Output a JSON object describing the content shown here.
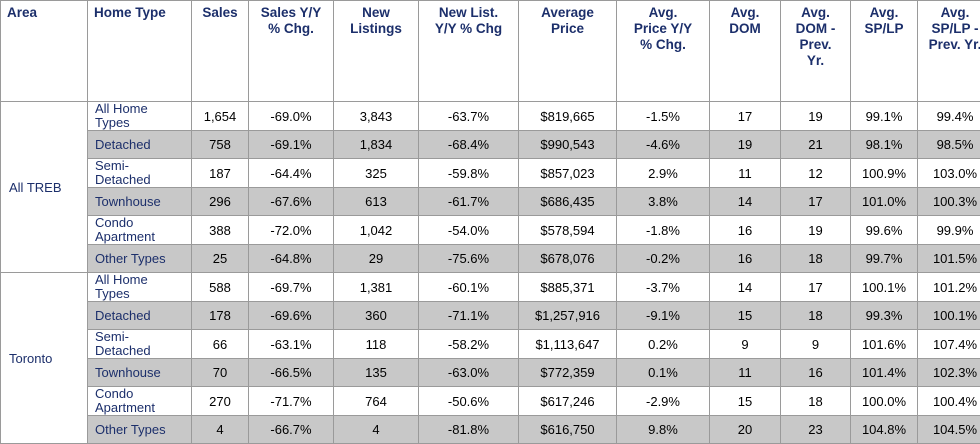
{
  "headers": {
    "area": "Area",
    "home_type": "Home Type",
    "sales": "Sales",
    "sales_yy": [
      "Sales Y/Y",
      "% Chg."
    ],
    "new_listings": [
      "New",
      "Listings"
    ],
    "new_list_yy": [
      "New List.",
      "Y/Y % Chg"
    ],
    "avg_price": [
      "Average",
      "Price"
    ],
    "avg_price_yy": [
      "Avg.",
      "Price Y/Y",
      "% Chg."
    ],
    "avg_dom": [
      "Avg.",
      "DOM"
    ],
    "avg_dom_prev": [
      "Avg.",
      "DOM -",
      "Prev.",
      "Yr."
    ],
    "avg_splp": [
      "Avg.",
      "SP/LP"
    ],
    "avg_splp_prev": [
      "Avg.",
      "SP/LP -",
      "Prev. Yr."
    ]
  },
  "groups": [
    {
      "area": "All TREB",
      "rows": [
        {
          "type": [
            "All Home",
            "Types"
          ],
          "sales": "1,654",
          "sales_yy": "-69.0%",
          "new_listings": "3,843",
          "new_list_yy": "-63.7%",
          "avg_price": "$819,665",
          "avg_price_yy": "-1.5%",
          "dom": "17",
          "dom_prev": "19",
          "splp": "99.1%",
          "splp_prev": "99.4%"
        },
        {
          "type": [
            "Detached"
          ],
          "sales": "758",
          "sales_yy": "-69.1%",
          "new_listings": "1,834",
          "new_list_yy": "-68.4%",
          "avg_price": "$990,543",
          "avg_price_yy": "-4.6%",
          "dom": "19",
          "dom_prev": "21",
          "splp": "98.1%",
          "splp_prev": "98.5%"
        },
        {
          "type": [
            "Semi-",
            "Detached"
          ],
          "sales": "187",
          "sales_yy": "-64.4%",
          "new_listings": "325",
          "new_list_yy": "-59.8%",
          "avg_price": "$857,023",
          "avg_price_yy": "2.9%",
          "dom": "11",
          "dom_prev": "12",
          "splp": "100.9%",
          "splp_prev": "103.0%"
        },
        {
          "type": [
            "Townhouse"
          ],
          "sales": "296",
          "sales_yy": "-67.6%",
          "new_listings": "613",
          "new_list_yy": "-61.7%",
          "avg_price": "$686,435",
          "avg_price_yy": "3.8%",
          "dom": "14",
          "dom_prev": "17",
          "splp": "101.0%",
          "splp_prev": "100.3%"
        },
        {
          "type": [
            "Condo",
            "Apartment"
          ],
          "sales": "388",
          "sales_yy": "-72.0%",
          "new_listings": "1,042",
          "new_list_yy": "-54.0%",
          "avg_price": "$578,594",
          "avg_price_yy": "-1.8%",
          "dom": "16",
          "dom_prev": "19",
          "splp": "99.6%",
          "splp_prev": "99.9%"
        },
        {
          "type": [
            "Other Types"
          ],
          "sales": "25",
          "sales_yy": "-64.8%",
          "new_listings": "29",
          "new_list_yy": "-75.6%",
          "avg_price": "$678,076",
          "avg_price_yy": "-0.2%",
          "dom": "16",
          "dom_prev": "18",
          "splp": "99.7%",
          "splp_prev": "101.5%"
        }
      ]
    },
    {
      "area": "Toronto",
      "rows": [
        {
          "type": [
            "All Home",
            "Types"
          ],
          "sales": "588",
          "sales_yy": "-69.7%",
          "new_listings": "1,381",
          "new_list_yy": "-60.1%",
          "avg_price": "$885,371",
          "avg_price_yy": "-3.7%",
          "dom": "14",
          "dom_prev": "17",
          "splp": "100.1%",
          "splp_prev": "101.2%"
        },
        {
          "type": [
            "Detached"
          ],
          "sales": "178",
          "sales_yy": "-69.6%",
          "new_listings": "360",
          "new_list_yy": "-71.1%",
          "avg_price": "$1,257,916",
          "avg_price_yy": "-9.1%",
          "dom": "15",
          "dom_prev": "18",
          "splp": "99.3%",
          "splp_prev": "100.1%"
        },
        {
          "type": [
            "Semi-",
            "Detached"
          ],
          "sales": "66",
          "sales_yy": "-63.1%",
          "new_listings": "118",
          "new_list_yy": "-58.2%",
          "avg_price": "$1,113,647",
          "avg_price_yy": "0.2%",
          "dom": "9",
          "dom_prev": "9",
          "splp": "101.6%",
          "splp_prev": "107.4%"
        },
        {
          "type": [
            "Townhouse"
          ],
          "sales": "70",
          "sales_yy": "-66.5%",
          "new_listings": "135",
          "new_list_yy": "-63.0%",
          "avg_price": "$772,359",
          "avg_price_yy": "0.1%",
          "dom": "11",
          "dom_prev": "16",
          "splp": "101.4%",
          "splp_prev": "102.3%"
        },
        {
          "type": [
            "Condo",
            "Apartment"
          ],
          "sales": "270",
          "sales_yy": "-71.7%",
          "new_listings": "764",
          "new_list_yy": "-50.6%",
          "avg_price": "$617,246",
          "avg_price_yy": "-2.9%",
          "dom": "15",
          "dom_prev": "18",
          "splp": "100.0%",
          "splp_prev": "100.4%"
        },
        {
          "type": [
            "Other Types"
          ],
          "sales": "4",
          "sales_yy": "-66.7%",
          "new_listings": "4",
          "new_list_yy": "-81.8%",
          "avg_price": "$616,750",
          "avg_price_yy": "9.8%",
          "dom": "20",
          "dom_prev": "23",
          "splp": "104.8%",
          "splp_prev": "104.5%"
        }
      ]
    }
  ]
}
